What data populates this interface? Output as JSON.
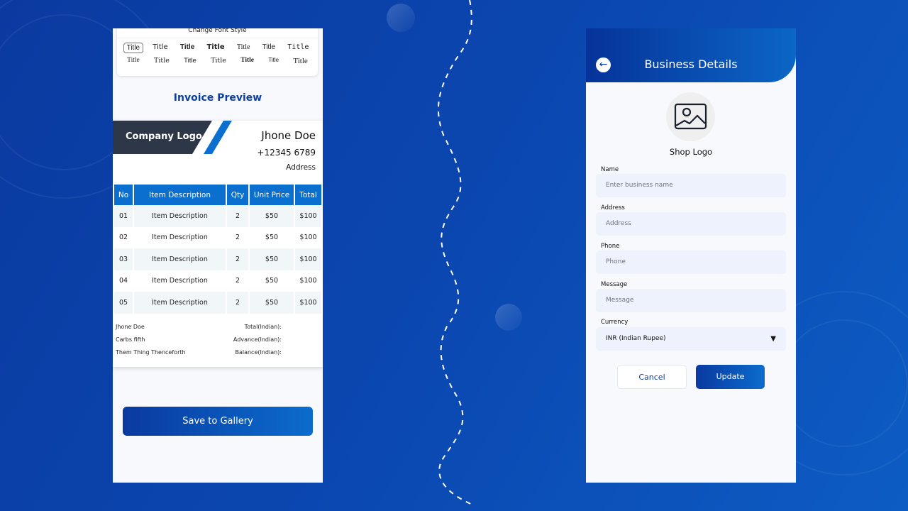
{
  "left": {
    "font_card": {
      "title": "Change Font Style",
      "row1": [
        "Title",
        "Title",
        "Title",
        "Title",
        "Title",
        "Title",
        "Title"
      ],
      "row2": [
        "Title",
        "Title",
        "Title",
        "Title",
        "Title",
        "Title",
        "Title"
      ]
    },
    "preview_title": "Invoice Preview",
    "invoice": {
      "logo": "Company Logo",
      "name": "Jhone Doe",
      "phone": "+12345 6789",
      "address": "Address",
      "headers": [
        "No",
        "Item Description",
        "Qty",
        "Unit Price",
        "Total"
      ],
      "rows": [
        [
          "01",
          "Item Description",
          "2",
          "$50",
          "$100"
        ],
        [
          "02",
          "Item Description",
          "2",
          "$50",
          "$100"
        ],
        [
          "03",
          "Item Description",
          "2",
          "$50",
          "$100"
        ],
        [
          "04",
          "Item Description",
          "2",
          "$50",
          "$100"
        ],
        [
          "05",
          "Item Description",
          "2",
          "$50",
          "$100"
        ]
      ],
      "footer_left": [
        "Jhone Doe",
        "Carbs fifth",
        "Them Thing Thenceforth"
      ],
      "footer_right": [
        "Total(Indian):",
        "Advance(Indian):",
        "Balance(Indian):"
      ]
    },
    "save_label": "Save to Gallery"
  },
  "right": {
    "title": "Business Details",
    "back_icon": "arrow-left-icon",
    "logo_label": "Shop Logo",
    "fields": [
      {
        "label": "Name",
        "placeholder": "Enter business name"
      },
      {
        "label": "Address",
        "placeholder": "Address"
      },
      {
        "label": "Phone",
        "placeholder": "Phone"
      },
      {
        "label": "Message",
        "placeholder": "Message"
      }
    ],
    "currency": {
      "label": "Currency",
      "value": "INR (Indian Rupee)"
    },
    "cancel_label": "Cancel",
    "update_label": "Update"
  }
}
